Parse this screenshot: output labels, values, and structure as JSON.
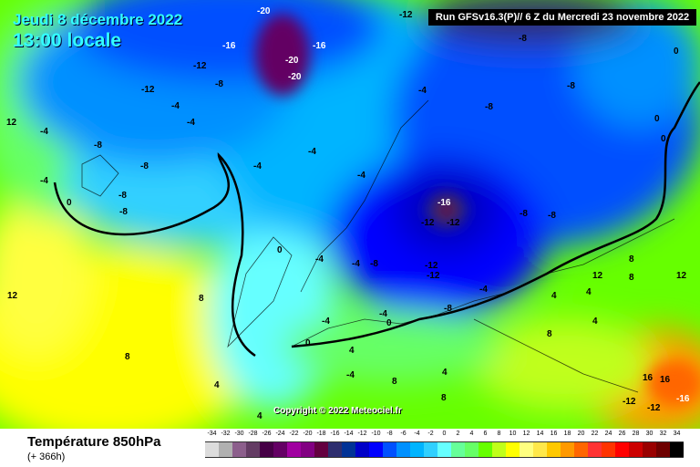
{
  "header": {
    "date": "Jeudi 8 décembre 2022",
    "time": "13:00 locale",
    "run": "Run GFSv16.3(P)// 6 Z du Mercredi 23 novembre 2022"
  },
  "copyright": "Copyright © 2022 Meteociel.fr",
  "footer": {
    "title": "Température 850hPa",
    "subtitle": "(+ 366h)"
  },
  "legend": {
    "ticks": [
      "-34",
      "-32",
      "-30",
      "-28",
      "-26",
      "-24",
      "-22",
      "-20",
      "-18",
      "-16",
      "-14",
      "-12",
      "-10",
      "-8",
      "-6",
      "-4",
      "-2",
      "0",
      "2",
      "4",
      "6",
      "8",
      "10",
      "12",
      "14",
      "16",
      "18",
      "20",
      "22",
      "24",
      "26",
      "28",
      "30",
      "32",
      "34"
    ],
    "colors": [
      "#dcdcdc",
      "#b0b0b0",
      "#8c5f8c",
      "#643c64",
      "#460046",
      "#640064",
      "#a000a0",
      "#820082",
      "#640040",
      "#2d2d6e",
      "#003296",
      "#0000c8",
      "#0000ff",
      "#0050ff",
      "#0090ff",
      "#00b4ff",
      "#30d0ff",
      "#66ffff",
      "#66ff99",
      "#66ff66",
      "#66ff00",
      "#c0ff1a",
      "#ffff00",
      "#ffff80",
      "#ffe84a",
      "#ffc800",
      "#ff9900",
      "#ff6600",
      "#ff3333",
      "#ff3300",
      "#ff0000",
      "#cc0000",
      "#990000",
      "#6e0000",
      "#000000"
    ]
  },
  "isotherm_labels": [
    "-20",
    "-16",
    "-12",
    "-16",
    "-20",
    "-20",
    "-12",
    "-8",
    "-8",
    "-4",
    "-4",
    "-12",
    "-8",
    "-4",
    "-8",
    "-12",
    "0",
    "-8",
    "-4",
    "-4",
    "-4",
    "-8",
    "-4",
    "0",
    "-4",
    "-8",
    "-16",
    "-12",
    "-8",
    "-12",
    "-4",
    "-8",
    "-4",
    "0",
    "4",
    "4",
    "8",
    "12",
    "0",
    "-4",
    "8",
    "12",
    "8",
    "16",
    "16",
    "-12",
    "-12",
    "-16",
    "4",
    "8",
    "4",
    "8",
    "12",
    "8",
    "8",
    "4",
    "0",
    "-4",
    "-12",
    "-8",
    "-8",
    "0",
    "4",
    "12",
    "-4",
    "-4",
    "-8",
    "0",
    "4"
  ]
}
